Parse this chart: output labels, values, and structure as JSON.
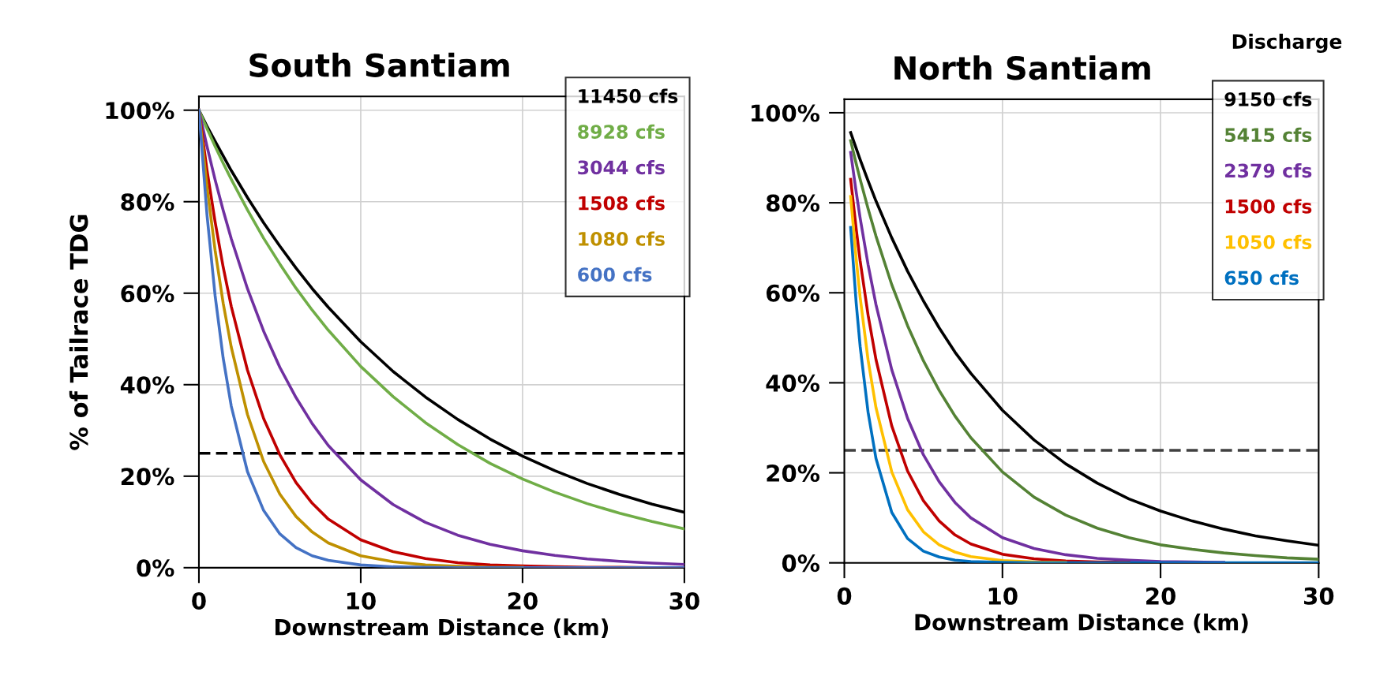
{
  "chart_data": [
    {
      "type": "line",
      "title": "South Santiam",
      "xlabel": "Downstream Distance (km)",
      "ylabel": "% of Tailrace TDG",
      "x": [
        0,
        0.5,
        1,
        1.5,
        2,
        3,
        4,
        5,
        6,
        7,
        8,
        10,
        12,
        14,
        16,
        18,
        20,
        22,
        24,
        26,
        28,
        30
      ],
      "series": [
        {
          "name": "11450 cfs",
          "color": "#000000",
          "values": [
            100,
            96.5,
            93.2,
            90,
            86.8,
            80.9,
            75.4,
            70.3,
            65.5,
            61,
            56.9,
            49.4,
            42.9,
            37.3,
            32.4,
            28.1,
            24.4,
            21.2,
            18.4,
            16,
            13.9,
            12.1
          ]
        },
        {
          "name": "8928 cfs",
          "color": "#70ad47",
          "values": [
            100,
            96,
            92.1,
            88.4,
            84.9,
            78.2,
            72,
            66.4,
            61.1,
            56.3,
            51.9,
            44,
            37.4,
            31.7,
            26.9,
            22.8,
            19.4,
            16.5,
            14,
            11.9,
            10.1,
            8.5
          ]
        },
        {
          "name": "3044 cfs",
          "color": "#7030a0",
          "values": [
            100,
            92.1,
            84.8,
            78.1,
            71.9,
            61,
            51.7,
            43.8,
            37.2,
            31.5,
            26.7,
            19.2,
            13.8,
            9.9,
            7.1,
            5.1,
            3.7,
            2.7,
            1.9,
            1.4,
            1,
            0.7
          ]
        },
        {
          "name": "1508 cfs",
          "color": "#c00000",
          "values": [
            100,
            86.9,
            75.6,
            65.7,
            57.1,
            43.2,
            32.6,
            24.7,
            18.6,
            14.1,
            10.6,
            6.1,
            3.5,
            2,
            1.1,
            0.6,
            0.4,
            0.2,
            0.1,
            0.1,
            0,
            0
          ]
        },
        {
          "name": "1080 cfs",
          "color": "#bf9000",
          "values": [
            100,
            83.3,
            69.4,
            57.8,
            48.2,
            33.5,
            23.2,
            16.1,
            11.2,
            7.8,
            5.4,
            2.6,
            1.3,
            0.6,
            0.3,
            0.1,
            0.1,
            null,
            null,
            null,
            null,
            null
          ]
        },
        {
          "name": "600 cfs",
          "color": "#4472c4",
          "values": [
            100,
            77.1,
            59.5,
            45.8,
            35.3,
            21,
            12.5,
            7.4,
            4.4,
            2.6,
            1.6,
            0.6,
            0.2,
            0.1,
            0,
            0,
            0,
            0,
            0,
            0,
            0,
            0
          ]
        }
      ],
      "xlim": [
        0,
        30
      ],
      "ylim": [
        0,
        103
      ],
      "xticks": [
        0,
        10,
        20,
        30
      ],
      "yticks": [
        {
          "value": 0,
          "label": "0%"
        },
        {
          "value": 20,
          "label": "20%"
        },
        {
          "value": 40,
          "label": "40%"
        },
        {
          "value": 60,
          "label": "60%"
        },
        {
          "value": 80,
          "label": "80%"
        },
        {
          "value": 100,
          "label": "100%"
        }
      ],
      "grid": true,
      "legend": "top right",
      "ref_lines": [
        {
          "axis": "y",
          "value": 25,
          "color": "#000000",
          "line_style": "dashed"
        }
      ]
    },
    {
      "type": "line",
      "title": "North Santiam",
      "xlabel": "Downstream Distance (km)",
      "legend_title": "Discharge",
      "x": [
        0.4,
        0.75,
        1,
        1.5,
        2,
        3,
        4,
        5,
        6,
        7,
        8,
        10,
        12,
        14,
        16,
        18,
        20,
        22,
        24,
        26,
        28,
        30
      ],
      "series": [
        {
          "name": "9150 cfs",
          "color": "#000000",
          "values": [
            95.6,
            92.1,
            89.6,
            84.9,
            80.4,
            72.2,
            64.8,
            58.2,
            52.2,
            46.8,
            42.1,
            33.9,
            27.3,
            22,
            17.7,
            14.2,
            11.5,
            9.3,
            7.5,
            6,
            4.9,
            3.9
          ]
        },
        {
          "name": "5415 cfs",
          "color": "#548235",
          "values": [
            93.8,
            88.7,
            85.2,
            78.7,
            72.6,
            61.8,
            52.7,
            44.9,
            38.3,
            32.6,
            27.8,
            20.2,
            14.6,
            10.6,
            7.7,
            5.6,
            4,
            3,
            2.2,
            1.6,
            1.1,
            0.8
          ]
        },
        {
          "name": "2379 cfs",
          "color": "#7030a0",
          "values": [
            91.2,
            82.4,
            76.6,
            66.3,
            57.4,
            42.9,
            32.1,
            24,
            18,
            13.4,
            10,
            5.6,
            3.2,
            1.8,
            1,
            0.6,
            0.3,
            0.2,
            0.1,
            null,
            null,
            null
          ]
        },
        {
          "name": "1500 cfs",
          "color": "#c00000",
          "values": [
            85.2,
            74.2,
            67.1,
            55.1,
            45.2,
            30.4,
            20.4,
            13.8,
            9.3,
            6.2,
            4.2,
            1.9,
            0.9,
            0.4,
            0.2,
            0.1,
            null,
            null,
            null,
            null,
            null,
            null
          ]
        },
        {
          "name": "1050 cfs",
          "color": "#ffc000",
          "values": [
            81.4,
            67.5,
            59,
            45.1,
            34.5,
            20.2,
            11.8,
            6.9,
            4,
            2.4,
            1.4,
            0.5,
            0.2,
            0.1,
            null,
            null,
            null,
            null,
            null,
            null,
            null,
            null
          ]
        },
        {
          "name": "650 cfs",
          "color": "#0070c0",
          "values": [
            74.5,
            57.7,
            48.1,
            33.5,
            23.2,
            11.2,
            5.4,
            2.6,
            1.3,
            0.6,
            0.3,
            0.1,
            0,
            0,
            0,
            0,
            0,
            0,
            0,
            0,
            0,
            0
          ]
        }
      ],
      "xlim": [
        0,
        30
      ],
      "ylim": [
        0,
        103
      ],
      "xticks": [
        0,
        10,
        20,
        30
      ],
      "yticks": [
        {
          "value": 0,
          "label": "0%"
        },
        {
          "value": 20,
          "label": "20%"
        },
        {
          "value": 40,
          "label": "40%"
        },
        {
          "value": 60,
          "label": "60%"
        },
        {
          "value": 80,
          "label": "80%"
        },
        {
          "value": 100,
          "label": "100%"
        }
      ],
      "grid": true,
      "legend": "top right",
      "ref_lines": [
        {
          "axis": "y",
          "value": 25,
          "color": "#404040",
          "line_style": "dashed"
        }
      ]
    }
  ]
}
